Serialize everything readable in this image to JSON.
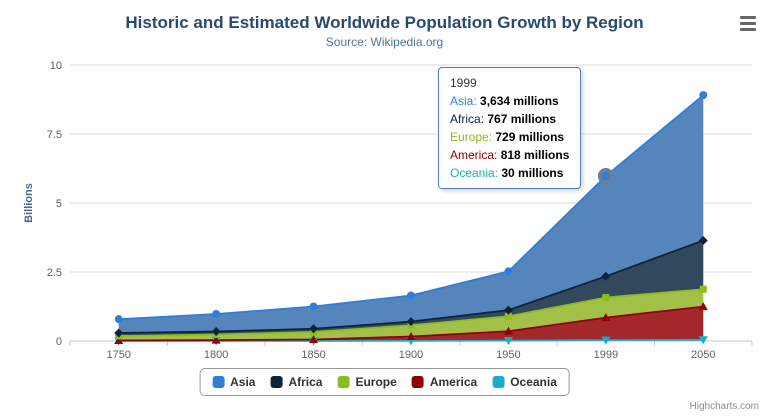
{
  "chart_data": {
    "type": "area",
    "stacking": "normal",
    "title": "Historic and Estimated Worldwide Population Growth by Region",
    "subtitle": "Source: Wikipedia.org",
    "categories": [
      "1750",
      "1800",
      "1850",
      "1900",
      "1950",
      "1999",
      "2050"
    ],
    "xlabel": "",
    "ylabel": "Billions",
    "values_unit": "millions",
    "ylim": [
      0,
      10
    ],
    "yticks": [
      0,
      2.5,
      5,
      7.5,
      10
    ],
    "grid": true,
    "legend_position": "bottom",
    "stack_order_bottom_to_top": [
      "Oceania",
      "America",
      "Europe",
      "Africa",
      "Asia"
    ],
    "series": [
      {
        "name": "Asia",
        "marker": "circle",
        "color": "#2f7ed8",
        "fill": "#5585bb",
        "values": [
          502,
          635,
          809,
          947,
          1402,
          3634,
          5268
        ]
      },
      {
        "name": "Africa",
        "marker": "diamond",
        "color": "#0d233a",
        "fill": "#32485c",
        "values": [
          106,
          107,
          111,
          133,
          221,
          767,
          1766
        ]
      },
      {
        "name": "Europe",
        "marker": "square",
        "color": "#8bbc21",
        "fill": "#a3c148",
        "values": [
          163,
          203,
          276,
          408,
          547,
          729,
          628
        ]
      },
      {
        "name": "America",
        "marker": "triangle",
        "color": "#910000",
        "fill": "#a3282c",
        "values": [
          18,
          31,
          54,
          156,
          339,
          818,
          1201
        ]
      },
      {
        "name": "Oceania",
        "marker": "triangle-down",
        "color": "#1aadce",
        "fill": "#35aec6",
        "values": [
          2,
          2,
          2,
          6,
          13,
          30,
          46
        ]
      }
    ],
    "hover_point": {
      "series": "Asia",
      "category": "1999"
    }
  },
  "tooltip": {
    "category": "1999",
    "border_color": "#4f80b8",
    "rows": [
      {
        "name": "Asia",
        "value": "3,634 millions"
      },
      {
        "name": "Africa",
        "value": "767 millions"
      },
      {
        "name": "Europe",
        "value": "729 millions"
      },
      {
        "name": "America",
        "value": "818 millions"
      },
      {
        "name": "Oceania",
        "value": "30 millions"
      }
    ]
  },
  "credits": "Highcharts.com"
}
